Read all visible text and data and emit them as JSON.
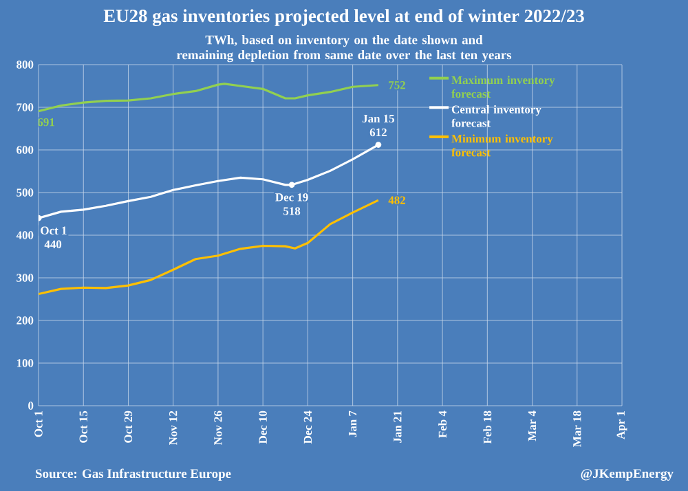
{
  "chart_data": {
    "type": "line",
    "title": "EU28 gas inventories projected level at end of winter 2022/23",
    "subtitle": "TWh, based on inventory on the date shown and remaining depletion from same date over the last ten years",
    "xlim": [
      "2022-10-01",
      "2023-04-01"
    ],
    "xticks": [
      {
        "value": "2022-10-01",
        "label": "Oct 1"
      },
      {
        "value": "2022-10-15",
        "label": "Oct 15"
      },
      {
        "value": "2022-10-29",
        "label": "Oct 29"
      },
      {
        "value": "2022-11-12",
        "label": "Nov 12"
      },
      {
        "value": "2022-11-26",
        "label": "Nov 26"
      },
      {
        "value": "2022-12-10",
        "label": "Dec 10"
      },
      {
        "value": "2022-12-24",
        "label": "Dec 24"
      },
      {
        "value": "2023-01-07",
        "label": "Jan 7"
      },
      {
        "value": "2023-01-21",
        "label": "Jan 21"
      },
      {
        "value": "2023-02-04",
        "label": "Feb 4"
      },
      {
        "value": "2023-02-18",
        "label": "Feb 18"
      },
      {
        "value": "2023-03-04",
        "label": "Mar 4"
      },
      {
        "value": "2023-03-18",
        "label": "Mar 18"
      },
      {
        "value": "2023-04-01",
        "label": "Apr 1"
      }
    ],
    "ylim": [
      0,
      800
    ],
    "yticks": [
      0,
      100,
      200,
      300,
      400,
      500,
      600,
      700,
      800
    ],
    "grid": true,
    "legend": "top right",
    "marker": "none",
    "line_style": "solid",
    "series": [
      {
        "name": "Maximum inventory forecast",
        "color": "#92d050",
        "x": [
          "2022-10-01",
          "2022-10-08",
          "2022-10-15",
          "2022-10-22",
          "2022-10-29",
          "2022-11-05",
          "2022-11-12",
          "2022-11-19",
          "2022-11-26",
          "2022-11-28",
          "2022-12-03",
          "2022-12-10",
          "2022-12-17",
          "2022-12-20",
          "2022-12-24",
          "2022-12-31",
          "2023-01-07",
          "2023-01-15"
        ],
        "values": [
          691,
          704,
          711,
          715,
          716,
          721,
          731,
          738,
          753,
          755,
          750,
          743,
          721,
          721,
          728,
          736,
          748,
          752
        ]
      },
      {
        "name": "Central inventory forecast",
        "color": "#ffffff",
        "x": [
          "2022-10-01",
          "2022-10-08",
          "2022-10-15",
          "2022-10-22",
          "2022-10-29",
          "2022-11-05",
          "2022-11-12",
          "2022-11-19",
          "2022-11-26",
          "2022-12-03",
          "2022-12-10",
          "2022-12-17",
          "2022-12-19",
          "2022-12-24",
          "2022-12-31",
          "2023-01-07",
          "2023-01-11",
          "2023-01-15"
        ],
        "values": [
          440,
          455,
          460,
          469,
          480,
          490,
          506,
          517,
          527,
          535,
          531,
          518,
          518,
          530,
          551,
          578,
          595,
          612
        ]
      },
      {
        "name": "Minimum inventory forecast",
        "color": "#ffc000",
        "x": [
          "2022-10-01",
          "2022-10-08",
          "2022-10-15",
          "2022-10-22",
          "2022-10-29",
          "2022-11-05",
          "2022-11-12",
          "2022-11-19",
          "2022-11-26",
          "2022-12-03",
          "2022-12-10",
          "2022-12-17",
          "2022-12-20",
          "2022-12-24",
          "2022-12-31",
          "2023-01-07",
          "2023-01-15"
        ],
        "values": [
          262,
          274,
          277,
          276,
          282,
          295,
          319,
          344,
          352,
          368,
          375,
          374,
          369,
          382,
          426,
          453,
          482
        ]
      }
    ],
    "annotations": [
      "Source: Gas Infrastructure Europe",
      "@JKempEnergy",
      {
        "text": "691",
        "x": "2022-10-01",
        "y": 691
      },
      {
        "text": "752",
        "x": "2023-01-15",
        "y": 752
      },
      {
        "text": "Oct 1",
        "x": "2022-10-01",
        "y": 440
      },
      {
        "text": "440",
        "x": "2022-10-01",
        "y": 440
      },
      {
        "text": "Dec 19",
        "x": "2022-12-19",
        "y": 518
      },
      {
        "text": "518",
        "x": "2022-12-19",
        "y": 518
      },
      {
        "text": "Jan 15",
        "x": "2023-01-15",
        "y": 612
      },
      {
        "text": "612",
        "x": "2023-01-15",
        "y": 612
      },
      {
        "text": "482",
        "x": "2023-01-15",
        "y": 482
      }
    ]
  }
}
